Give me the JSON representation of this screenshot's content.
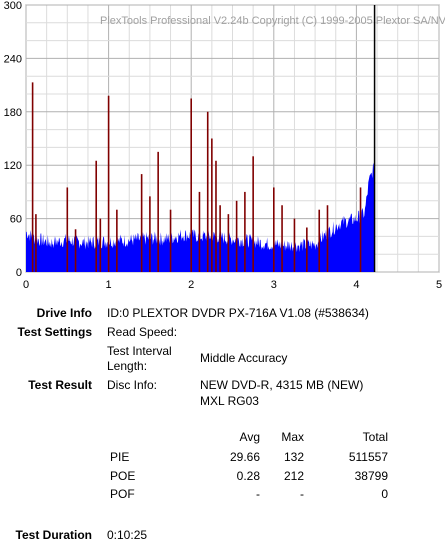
{
  "chart_data": {
    "type": "bar",
    "watermark": "PlexTools Professional V2.24b Copyright (C) 1999-2005 Plextor SA/NV",
    "xlim": [
      0,
      5
    ],
    "ylim": [
      0,
      300
    ],
    "x_ticks": [
      "0",
      "1",
      "2",
      "3",
      "4",
      "5"
    ],
    "y_ticks": [
      "0",
      "60",
      "120",
      "180",
      "240",
      "300"
    ],
    "grid": true,
    "x_end": 4.22,
    "series": [
      {
        "color": "#0000ff",
        "profile": [
          [
            0.0,
            45
          ],
          [
            0.1,
            38
          ],
          [
            0.3,
            33
          ],
          [
            0.5,
            36
          ],
          [
            0.7,
            33
          ],
          [
            0.9,
            34
          ],
          [
            1.1,
            35
          ],
          [
            1.3,
            36
          ],
          [
            1.5,
            38
          ],
          [
            1.7,
            37
          ],
          [
            1.9,
            42
          ],
          [
            2.1,
            40
          ],
          [
            2.3,
            40
          ],
          [
            2.5,
            37
          ],
          [
            2.7,
            35
          ],
          [
            2.9,
            32
          ],
          [
            3.1,
            30
          ],
          [
            3.3,
            30
          ],
          [
            3.5,
            31
          ],
          [
            3.6,
            40
          ],
          [
            3.8,
            55
          ],
          [
            4.0,
            60
          ],
          [
            4.1,
            66
          ],
          [
            4.15,
            100
          ],
          [
            4.2,
            115
          ]
        ]
      },
      {
        "color": "#800000",
        "spikes": [
          [
            0.08,
            213
          ],
          [
            0.12,
            65
          ],
          [
            0.5,
            95
          ],
          [
            0.6,
            48
          ],
          [
            0.85,
            125
          ],
          [
            0.9,
            60
          ],
          [
            1.0,
            198
          ],
          [
            1.1,
            70
          ],
          [
            1.4,
            110
          ],
          [
            1.5,
            85
          ],
          [
            1.6,
            135
          ],
          [
            1.75,
            70
          ],
          [
            2.0,
            195
          ],
          [
            2.1,
            90
          ],
          [
            2.2,
            180
          ],
          [
            2.25,
            150
          ],
          [
            2.3,
            125
          ],
          [
            2.35,
            75
          ],
          [
            2.45,
            65
          ],
          [
            2.55,
            80
          ],
          [
            2.65,
            90
          ],
          [
            2.75,
            130
          ],
          [
            3.0,
            95
          ],
          [
            3.1,
            75
          ],
          [
            3.25,
            60
          ],
          [
            3.4,
            50
          ],
          [
            3.55,
            70
          ],
          [
            3.65,
            75
          ],
          [
            4.05,
            95
          ]
        ]
      },
      {
        "color": "#000000",
        "lines": [
          [
            4.22,
            300
          ]
        ]
      }
    ]
  },
  "info": {
    "drive_label": "Drive Info",
    "drive_value": "ID:0 PLEXTOR DVDR PX-716A V1.08 (#538634)",
    "settings_label": "Test Settings",
    "read_speed_label": "Read Speed:",
    "interval_label_1": "Test Interval",
    "interval_label_2": "Length:",
    "interval_value": "Middle Accuracy",
    "result_label": "Test Result",
    "disc_label": "Disc Info:",
    "disc_value_1": "NEW DVD-R, 4315 MB (NEW)",
    "disc_value_2": "MXL RG03",
    "duration_label": "Test Duration",
    "duration_value": "0:10:25"
  },
  "stats": {
    "headers": [
      "Avg",
      "Max",
      "Total"
    ],
    "rows": [
      {
        "name": "PIE",
        "avg": "29.66",
        "max": "132",
        "total": "511557"
      },
      {
        "name": "POE",
        "avg": "0.28",
        "max": "212",
        "total": "38799"
      },
      {
        "name": "POF",
        "avg": "-",
        "max": "-",
        "total": "0"
      }
    ]
  }
}
